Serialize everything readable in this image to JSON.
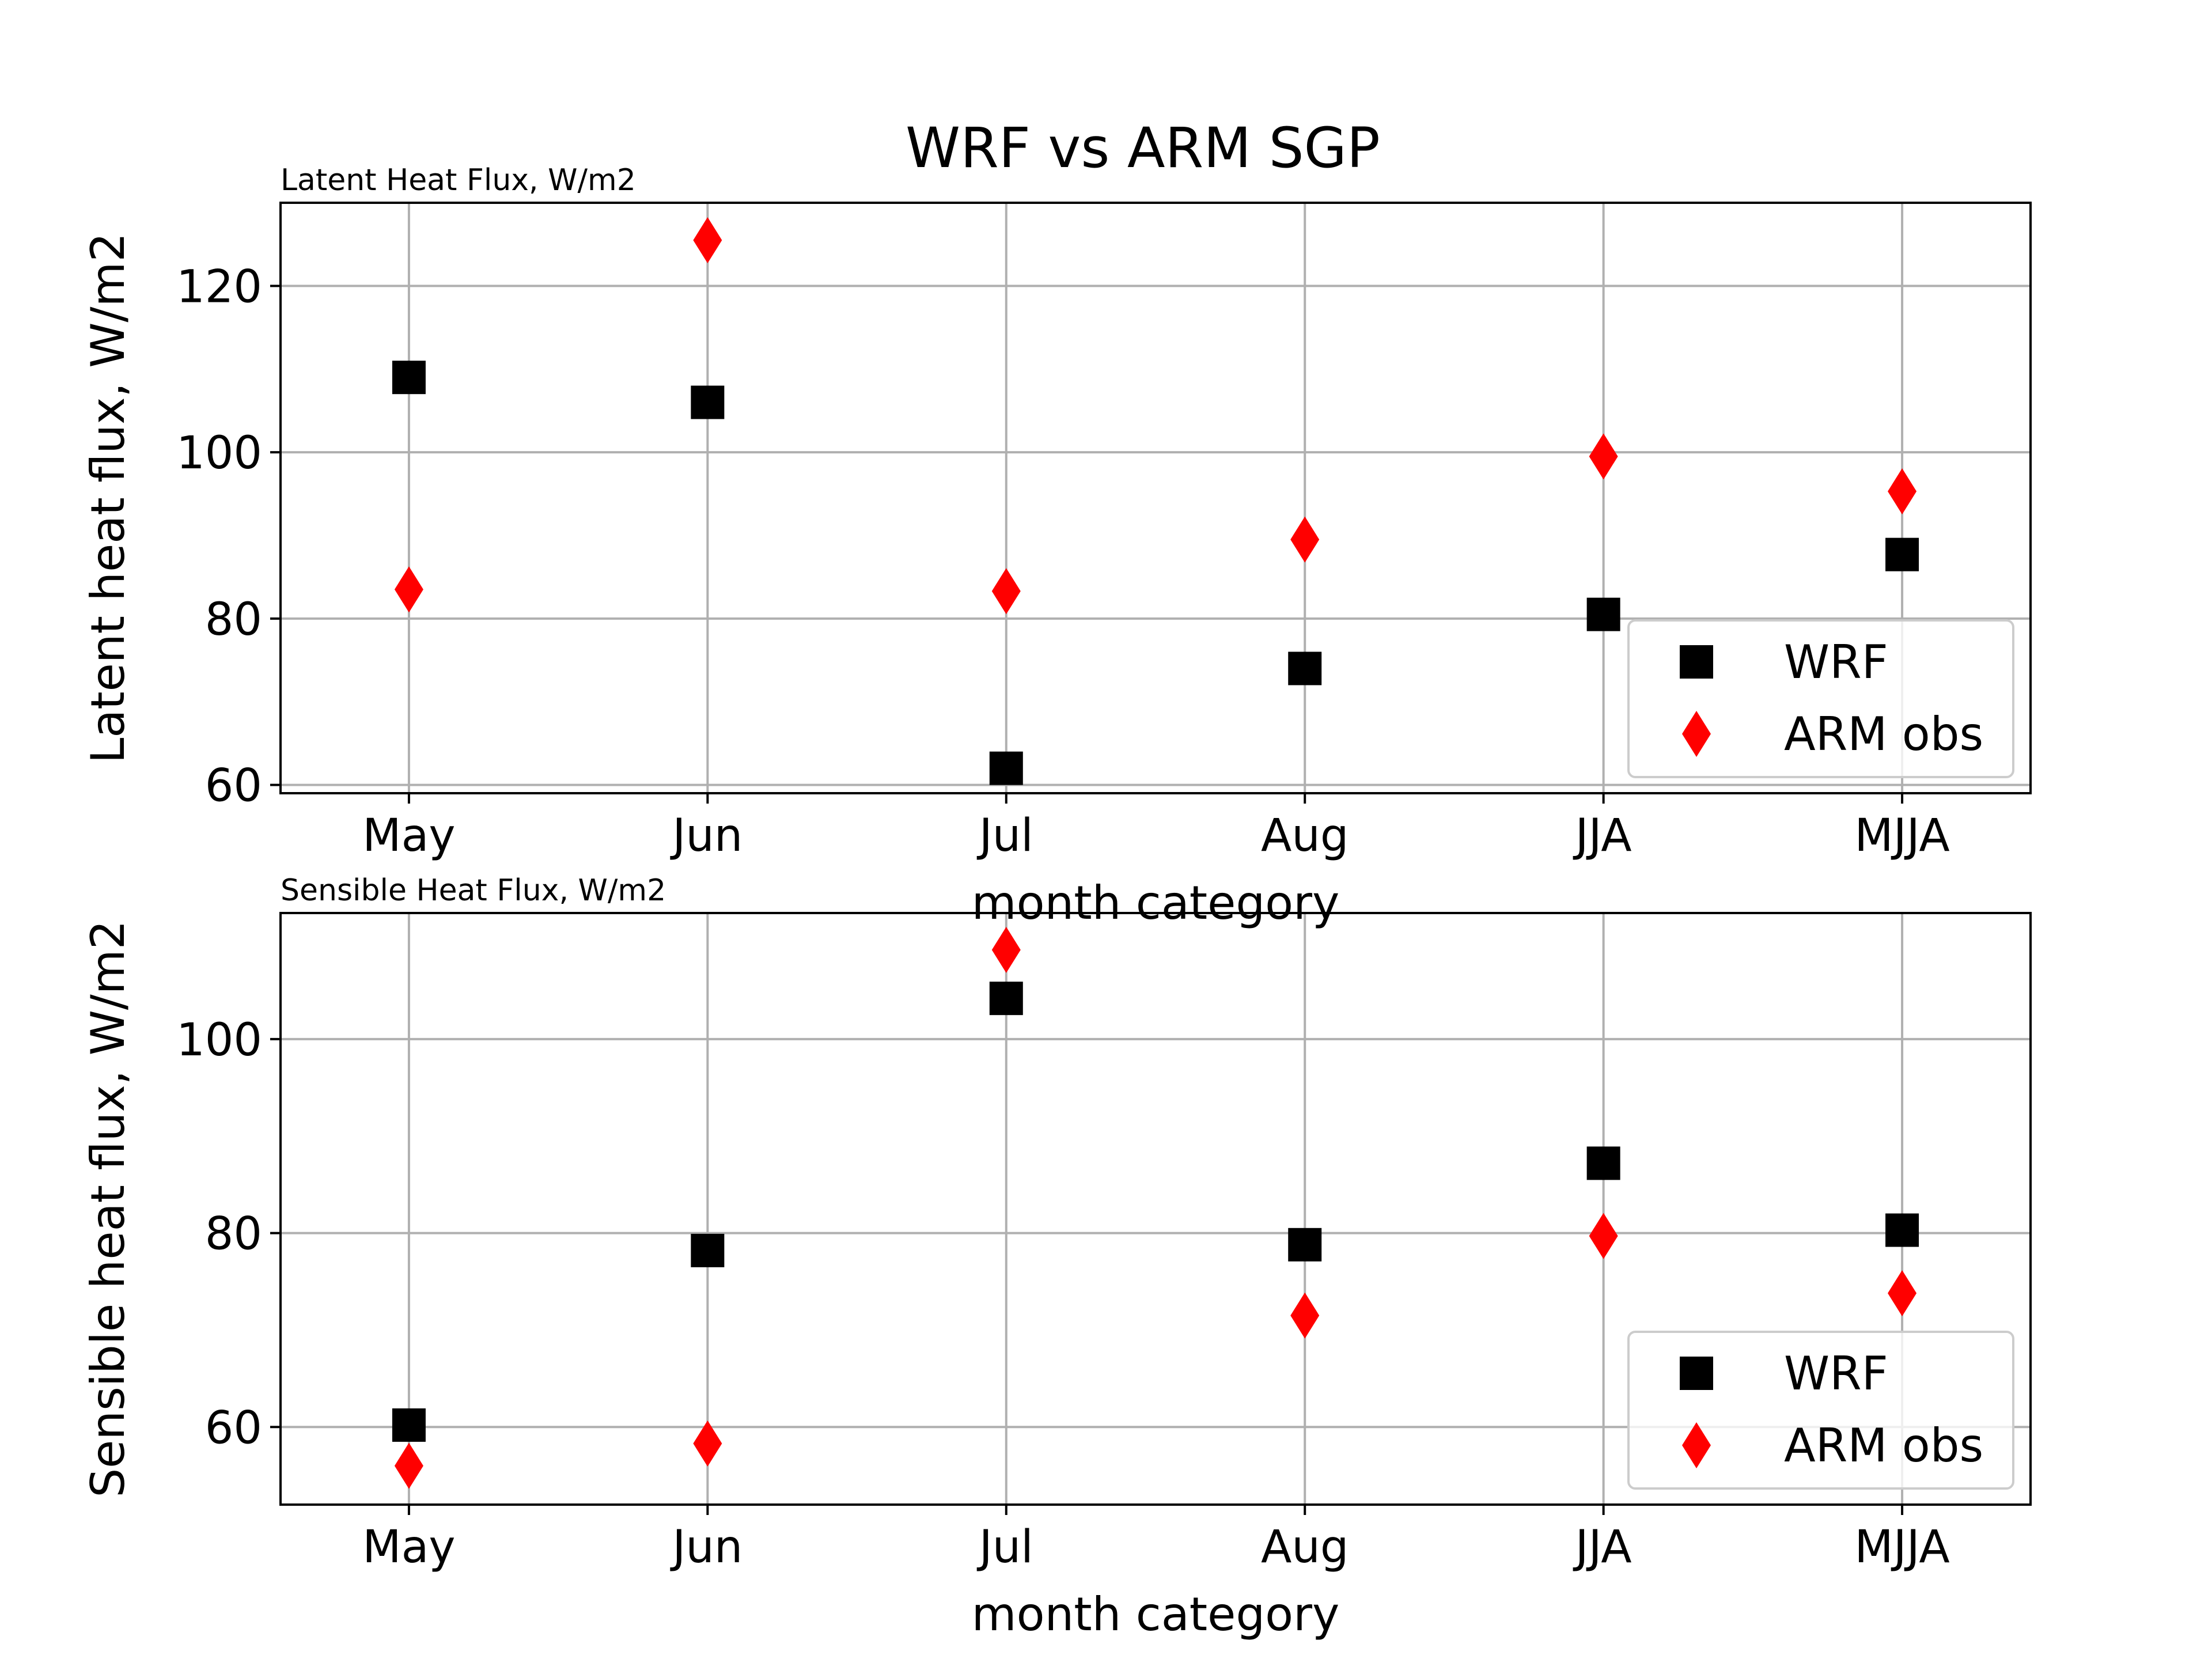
{
  "figure": {
    "title": "WRF vs ARM SGP"
  },
  "chart_data": [
    {
      "type": "scatter",
      "title": "Latent Heat Flux, W/m2",
      "xlabel": "month category",
      "ylabel": "Latent heat flux, W/m2",
      "categories": [
        "May",
        "Jun",
        "Jul",
        "Aug",
        "JJA",
        "MJJA"
      ],
      "ylim": [
        59,
        130
      ],
      "yticks": [
        60,
        80,
        100,
        120
      ],
      "grid": true,
      "legend": "lower-right",
      "series": [
        {
          "name": "WRF",
          "marker": "square",
          "color": "#000000",
          "values": [
            109,
            106,
            62,
            74,
            80.5,
            87.7
          ]
        },
        {
          "name": "ARM obs",
          "marker": "thin-diamond",
          "color": "#ff0000",
          "values": [
            83.5,
            125.5,
            83.3,
            89.5,
            99.5,
            95.3
          ]
        }
      ]
    },
    {
      "type": "scatter",
      "title": "Sensible Heat Flux, W/m2",
      "xlabel": "month category",
      "ylabel": "Sensible heat flux, W/m2",
      "categories": [
        "May",
        "Jun",
        "Jul",
        "Aug",
        "JJA",
        "MJJA"
      ],
      "ylim": [
        52,
        113
      ],
      "yticks": [
        60,
        80,
        100
      ],
      "grid": true,
      "legend": "lower-right",
      "series": [
        {
          "name": "WRF",
          "marker": "square",
          "color": "#000000",
          "values": [
            60.2,
            78.2,
            104.2,
            78.8,
            87.2,
            80.3
          ]
        },
        {
          "name": "ARM obs",
          "marker": "thin-diamond",
          "color": "#ff0000",
          "values": [
            56,
            58.3,
            109.2,
            71.5,
            79.7,
            73.8
          ]
        }
      ]
    }
  ]
}
